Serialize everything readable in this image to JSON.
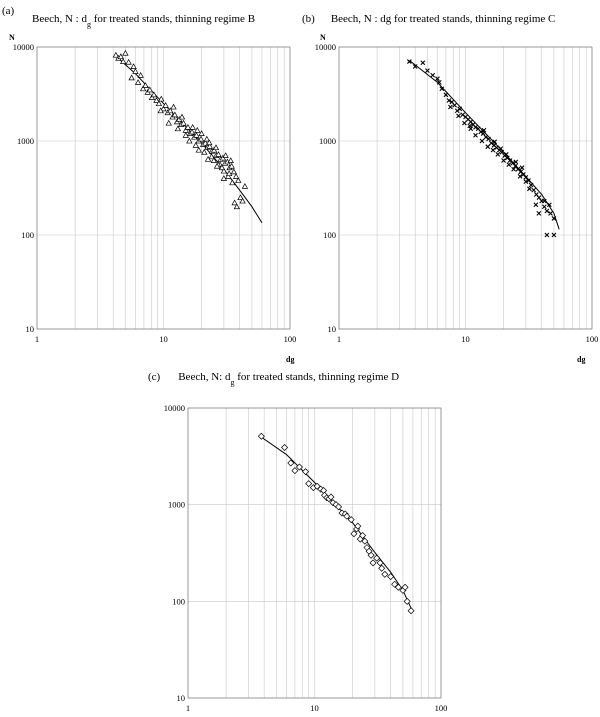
{
  "chart_data": [
    {
      "type": "scatter",
      "panel": "(a)",
      "title_main": "Beech, N : d",
      "title_sub": "g",
      "title_rest": " for treated stands, thinning regime B",
      "xlabel": "dg",
      "ylabel": "N",
      "x_scale": "log",
      "y_scale": "log",
      "xlim": [
        1,
        100
      ],
      "ylim": [
        10,
        10000
      ],
      "x_ticks": [
        "1",
        "10",
        "100"
      ],
      "y_ticks": [
        "10",
        "100",
        "1000",
        "10000"
      ],
      "grid": true,
      "marker": "triangle",
      "points": [
        [
          4.2,
          8200
        ],
        [
          4.4,
          7600
        ],
        [
          4.6,
          7900
        ],
        [
          4.8,
          7000
        ],
        [
          5.0,
          8600
        ],
        [
          5.3,
          6900
        ],
        [
          5.6,
          4700
        ],
        [
          5.8,
          6200
        ],
        [
          6.0,
          5500
        ],
        [
          6.3,
          4200
        ],
        [
          6.6,
          5000
        ],
        [
          6.9,
          3600
        ],
        [
          7.2,
          3900
        ],
        [
          7.5,
          3300
        ],
        [
          7.8,
          3500
        ],
        [
          8.1,
          2900
        ],
        [
          8.4,
          3100
        ],
        [
          8.8,
          2700
        ],
        [
          9.2,
          2500
        ],
        [
          9.6,
          2800
        ],
        [
          10.0,
          2200
        ],
        [
          10.4,
          2400
        ],
        [
          10.8,
          2000
        ],
        [
          11.3,
          2100
        ],
        [
          11.8,
          1800
        ],
        [
          12.3,
          1900
        ],
        [
          12.8,
          1600
        ],
        [
          13.3,
          1700
        ],
        [
          13.8,
          1500
        ],
        [
          14.4,
          1550
        ],
        [
          15.0,
          1300
        ],
        [
          15.6,
          1400
        ],
        [
          16.2,
          1200
        ],
        [
          16.8,
          1250
        ],
        [
          17.5,
          1100
        ],
        [
          18.2,
          1150
        ],
        [
          19.0,
          1000
        ],
        [
          19.8,
          1050
        ],
        [
          20.6,
          920
        ],
        [
          21.4,
          950
        ],
        [
          22.3,
          860
        ],
        [
          23.2,
          880
        ],
        [
          24.1,
          780
        ],
        [
          25.1,
          800
        ],
        [
          26.1,
          700
        ],
        [
          27.2,
          720
        ],
        [
          28.3,
          640
        ],
        [
          29.5,
          660
        ],
        [
          30.7,
          580
        ],
        [
          32.0,
          600
        ],
        [
          33.3,
          520
        ],
        [
          34.6,
          540
        ],
        [
          36.0,
          470
        ],
        [
          37.5,
          420
        ],
        [
          39.0,
          380
        ],
        [
          40.6,
          250
        ],
        [
          42.2,
          230
        ],
        [
          44.0,
          330
        ],
        [
          36.5,
          220
        ],
        [
          38.0,
          200
        ],
        [
          14.0,
          1800
        ],
        [
          16.0,
          1000
        ],
        [
          18.0,
          900
        ],
        [
          20.0,
          1200
        ],
        [
          22.0,
          1050
        ],
        [
          24.0,
          680
        ],
        [
          26.0,
          850
        ],
        [
          28.0,
          560
        ],
        [
          30.0,
          480
        ],
        [
          32.5,
          420
        ],
        [
          12.0,
          2300
        ],
        [
          11.0,
          1550
        ],
        [
          9.5,
          2100
        ],
        [
          13.0,
          1350
        ],
        [
          15.0,
          1150
        ],
        [
          17.0,
          1400
        ],
        [
          19.0,
          800
        ],
        [
          21.0,
          760
        ],
        [
          23.0,
          960
        ],
        [
          25.0,
          620
        ],
        [
          27.0,
          560
        ],
        [
          29.0,
          520
        ],
        [
          31.0,
          700
        ],
        [
          33.0,
          450
        ],
        [
          35.0,
          360
        ],
        [
          34.0,
          620
        ],
        [
          30.0,
          400
        ],
        [
          26.5,
          540
        ],
        [
          22.5,
          640
        ],
        [
          18.5,
          1300
        ]
      ],
      "trendline": [
        [
          4.2,
          8000
        ],
        [
          6,
          5200
        ],
        [
          10,
          2500
        ],
        [
          20,
          950
        ],
        [
          30,
          500
        ],
        [
          40,
          300
        ],
        [
          50,
          200
        ],
        [
          60,
          135
        ]
      ]
    },
    {
      "type": "scatter",
      "panel": "(b)",
      "title_main": "Beech, N : dg for treated stands, thinning regime C",
      "xlabel": "dg",
      "ylabel": "N",
      "x_scale": "log",
      "y_scale": "log",
      "xlim": [
        1,
        100
      ],
      "ylim": [
        10,
        10000
      ],
      "x_ticks": [
        "1",
        "10",
        "100"
      ],
      "y_ticks": [
        "10",
        "100",
        "1000",
        "10000"
      ],
      "grid": true,
      "marker": "x",
      "points": [
        [
          3.6,
          7000
        ],
        [
          4.0,
          6200
        ],
        [
          4.6,
          6800
        ],
        [
          5.0,
          5600
        ],
        [
          5.5,
          5000
        ],
        [
          6.0,
          4600
        ],
        [
          6.2,
          4200
        ],
        [
          6.5,
          3600
        ],
        [
          7.0,
          3100
        ],
        [
          7.4,
          2700
        ],
        [
          7.8,
          2600
        ],
        [
          8.2,
          2400
        ],
        [
          8.6,
          2100
        ],
        [
          9.0,
          2200
        ],
        [
          9.5,
          1900
        ],
        [
          10.0,
          1800
        ],
        [
          10.5,
          1700
        ],
        [
          11.0,
          1600
        ],
        [
          11.5,
          1500
        ],
        [
          12.0,
          1400
        ],
        [
          12.6,
          1350
        ],
        [
          13.2,
          1250
        ],
        [
          13.8,
          1200
        ],
        [
          14.5,
          1100
        ],
        [
          15.2,
          1050
        ],
        [
          16.0,
          950
        ],
        [
          16.8,
          900
        ],
        [
          17.6,
          850
        ],
        [
          18.5,
          800
        ],
        [
          19.4,
          760
        ],
        [
          20.4,
          700
        ],
        [
          21.4,
          660
        ],
        [
          22.5,
          620
        ],
        [
          23.6,
          580
        ],
        [
          24.8,
          540
        ],
        [
          26.0,
          500
        ],
        [
          27.3,
          470
        ],
        [
          28.6,
          440
        ],
        [
          30.0,
          410
        ],
        [
          31.5,
          380
        ],
        [
          33.0,
          340
        ],
        [
          34.6,
          300
        ],
        [
          36.3,
          270
        ],
        [
          38.1,
          250
        ],
        [
          40.0,
          230
        ],
        [
          42.0,
          200
        ],
        [
          44.0,
          180
        ],
        [
          47.0,
          170
        ],
        [
          50.0,
          150
        ],
        [
          46.0,
          210
        ],
        [
          44.0,
          100
        ],
        [
          50.0,
          100
        ],
        [
          38.0,
          170
        ],
        [
          42.0,
          230
        ],
        [
          36.0,
          210
        ],
        [
          30.0,
          370
        ],
        [
          32.0,
          310
        ],
        [
          27.0,
          420
        ],
        [
          24.0,
          500
        ],
        [
          22.0,
          560
        ],
        [
          20.0,
          620
        ],
        [
          18.0,
          720
        ],
        [
          16.5,
          800
        ],
        [
          15.0,
          870
        ],
        [
          13.5,
          1000
        ],
        [
          12.0,
          1150
        ],
        [
          10.8,
          1450
        ],
        [
          9.8,
          1550
        ],
        [
          8.8,
          1850
        ],
        [
          7.6,
          2300
        ],
        [
          25.0,
          600
        ],
        [
          28.0,
          520
        ],
        [
          21.0,
          720
        ],
        [
          19.0,
          830
        ],
        [
          17.0,
          980
        ],
        [
          14.0,
          1300
        ],
        [
          11.0,
          1350
        ]
      ],
      "trendline": [
        [
          3.6,
          7200
        ],
        [
          6,
          4200
        ],
        [
          10,
          2000
        ],
        [
          20,
          760
        ],
        [
          30,
          420
        ],
        [
          40,
          270
        ],
        [
          50,
          170
        ],
        [
          55,
          115
        ]
      ]
    },
    {
      "type": "scatter",
      "panel": "(c)",
      "title_main": "Beech, N: d",
      "title_sub": "g",
      "title_rest": " for treated stands, thinning regime D",
      "x_scale": "log",
      "y_scale": "log",
      "xlim": [
        1,
        100
      ],
      "ylim": [
        10,
        10000
      ],
      "x_ticks": [
        "1",
        "10",
        "100"
      ],
      "y_ticks": [
        "10",
        "100",
        "1000",
        "10000"
      ],
      "grid": true,
      "marker": "diamond",
      "points": [
        [
          3.8,
          5100
        ],
        [
          5.8,
          3900
        ],
        [
          6.5,
          2700
        ],
        [
          7.0,
          2250
        ],
        [
          7.6,
          2450
        ],
        [
          8.5,
          2200
        ],
        [
          9.0,
          1650
        ],
        [
          9.8,
          1500
        ],
        [
          10.5,
          1550
        ],
        [
          11.2,
          1450
        ],
        [
          11.8,
          1400
        ],
        [
          12.0,
          1250
        ],
        [
          12.5,
          1180
        ],
        [
          13.0,
          1150
        ],
        [
          13.5,
          1200
        ],
        [
          14.0,
          1050
        ],
        [
          14.8,
          1000
        ],
        [
          15.5,
          950
        ],
        [
          16.5,
          820
        ],
        [
          17.5,
          800
        ],
        [
          18.0,
          760
        ],
        [
          19.5,
          700
        ],
        [
          20.5,
          500
        ],
        [
          21.5,
          560
        ],
        [
          22.0,
          600
        ],
        [
          23.0,
          440
        ],
        [
          24.0,
          480
        ],
        [
          25.0,
          420
        ],
        [
          26.0,
          360
        ],
        [
          27.0,
          330
        ],
        [
          28.0,
          300
        ],
        [
          29.0,
          250
        ],
        [
          31.0,
          280
        ],
        [
          33.0,
          250
        ],
        [
          34.0,
          220
        ],
        [
          36.0,
          190
        ],
        [
          40.0,
          180
        ],
        [
          43.0,
          150
        ],
        [
          46.0,
          140
        ],
        [
          50.0,
          130
        ],
        [
          52.0,
          140
        ],
        [
          54.0,
          100
        ],
        [
          58.0,
          80
        ]
      ],
      "trendline": [
        [
          3.8,
          5000
        ],
        [
          6,
          3300
        ],
        [
          10,
          1700
        ],
        [
          20,
          650
        ],
        [
          30,
          320
        ],
        [
          40,
          200
        ],
        [
          50,
          130
        ],
        [
          58,
          85
        ]
      ]
    }
  ]
}
